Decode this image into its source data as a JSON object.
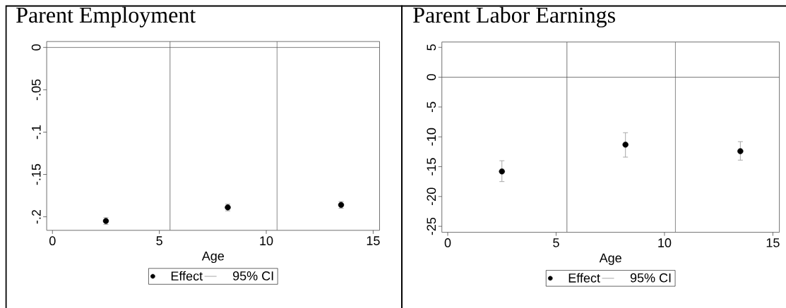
{
  "chart_data": [
    {
      "type": "scatter",
      "title": "Parent Employment",
      "xlabel": "Age",
      "x": [
        2.5,
        8.2,
        13.5
      ],
      "series": [
        {
          "name": "Effect",
          "color": "#000000",
          "values": [
            -0.205,
            -0.189,
            -0.186
          ],
          "errors": [
            [
              -0.209,
              -0.201
            ],
            [
              -0.193,
              -0.185
            ],
            [
              -0.19,
              -0.182
            ]
          ]
        },
        {
          "name": "95% CI",
          "color": "#a8a8a8",
          "values": [
            null,
            null,
            null
          ]
        }
      ],
      "xlim": [
        -0.27,
        15.3
      ],
      "ylim": [
        -0.216,
        0.007
      ],
      "xticks": [
        0,
        5,
        10,
        15
      ],
      "yticks": [
        0,
        {
          "value": -0.05,
          "label": "-.05"
        },
        {
          "value": -0.1,
          "label": "-.1"
        },
        {
          "value": -0.15,
          "label": "-.15"
        },
        {
          "value": -0.2,
          "label": "-.2"
        }
      ],
      "ref_lines": [
        {
          "axis": "y",
          "value": 0,
          "color": "#555555"
        },
        {
          "axis": "x",
          "value": 5.5,
          "color": "#555555"
        },
        {
          "axis": "x",
          "value": 10.5,
          "color": "#555555"
        }
      ],
      "legend": "bottom",
      "marker": "circle"
    },
    {
      "type": "scatter",
      "title": "Parent Labor Earnings",
      "xlabel": "Age",
      "x": [
        2.5,
        8.2,
        13.5
      ],
      "series": [
        {
          "name": "Effect",
          "color": "#000000",
          "values": [
            -15.8,
            -11.3,
            -12.4
          ],
          "errors": [
            [
              -17.5,
              -14.0
            ],
            [
              -13.4,
              -9.3
            ],
            [
              -13.9,
              -10.8
            ]
          ]
        },
        {
          "name": "95% CI",
          "color": "#a8a8a8",
          "values": [
            null,
            null,
            null
          ]
        }
      ],
      "xlim": [
        -0.27,
        15.3
      ],
      "ylim": [
        -26,
        5.9
      ],
      "xticks": [
        0,
        5,
        10,
        15
      ],
      "yticks": [
        5,
        0,
        -5,
        -10,
        -15,
        -20,
        -25
      ],
      "ref_lines": [
        {
          "axis": "y",
          "value": 0,
          "color": "#555555"
        },
        {
          "axis": "x",
          "value": 5.5,
          "color": "#555555"
        },
        {
          "axis": "x",
          "value": 10.5,
          "color": "#555555"
        }
      ],
      "legend": "bottom",
      "marker": "circle"
    }
  ]
}
